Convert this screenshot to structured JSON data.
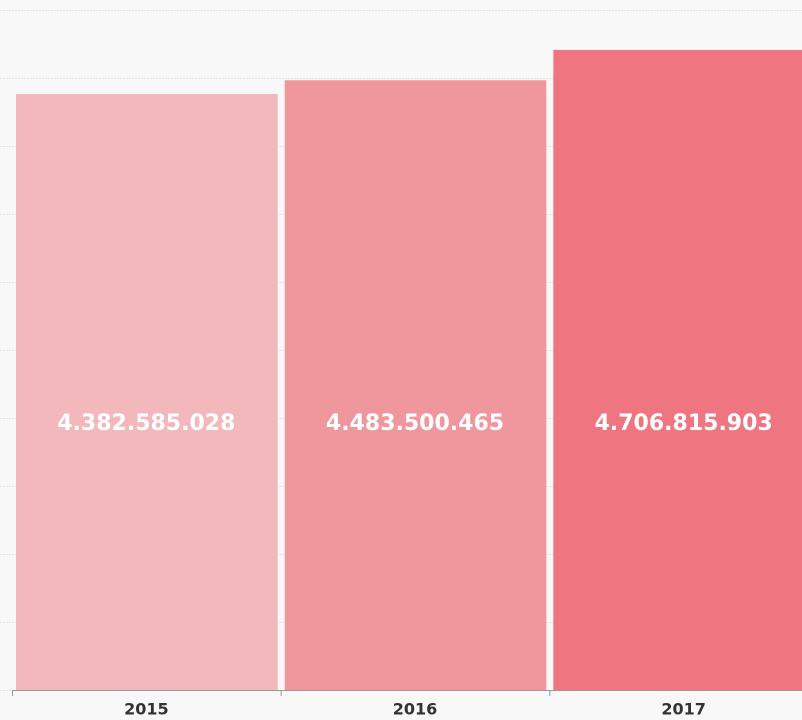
{
  "chart_data": {
    "type": "bar",
    "categories": [
      "2015",
      "2016",
      "2017"
    ],
    "values": [
      4382585028,
      4483500465,
      4706815903
    ],
    "value_labels": [
      "4.382.585.028",
      "4.483.500.465",
      "4.706.815.903"
    ],
    "colors": [
      "#f3b8bc",
      "#f0979e",
      "#ef7581"
    ],
    "ylim": [
      0,
      5000000000
    ],
    "yticks": [
      0,
      500000000,
      1000000000,
      1500000000,
      2000000000,
      2500000000,
      3000000000,
      3500000000,
      4000000000,
      4500000000,
      5000000000
    ],
    "grid": true
  }
}
